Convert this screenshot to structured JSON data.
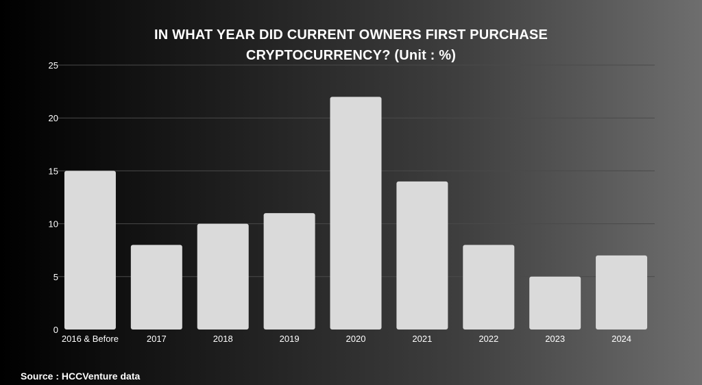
{
  "chart_data": {
    "type": "bar",
    "title_lines": [
      "IN WHAT YEAR DID CURRENT OWNERS FIRST PURCHASE",
      "CRYPTOCURRENCY? (Unit : %)"
    ],
    "categories": [
      "2016 & Before",
      "2017",
      "2018",
      "2019",
      "2020",
      "2021",
      "2022",
      "2023",
      "2024"
    ],
    "values": [
      15,
      8,
      10,
      11,
      22,
      14,
      8,
      5,
      7
    ],
    "ylim": [
      0,
      25
    ],
    "yticks": [
      "0",
      "5",
      "10",
      "15",
      "20",
      "25"
    ],
    "grid": true,
    "xlabel": "",
    "ylabel": "",
    "colors": {
      "bar": "#dadada",
      "text": "#ffffff",
      "grid": "#4a4a4a"
    }
  },
  "source": "Source : HCCVenture data"
}
